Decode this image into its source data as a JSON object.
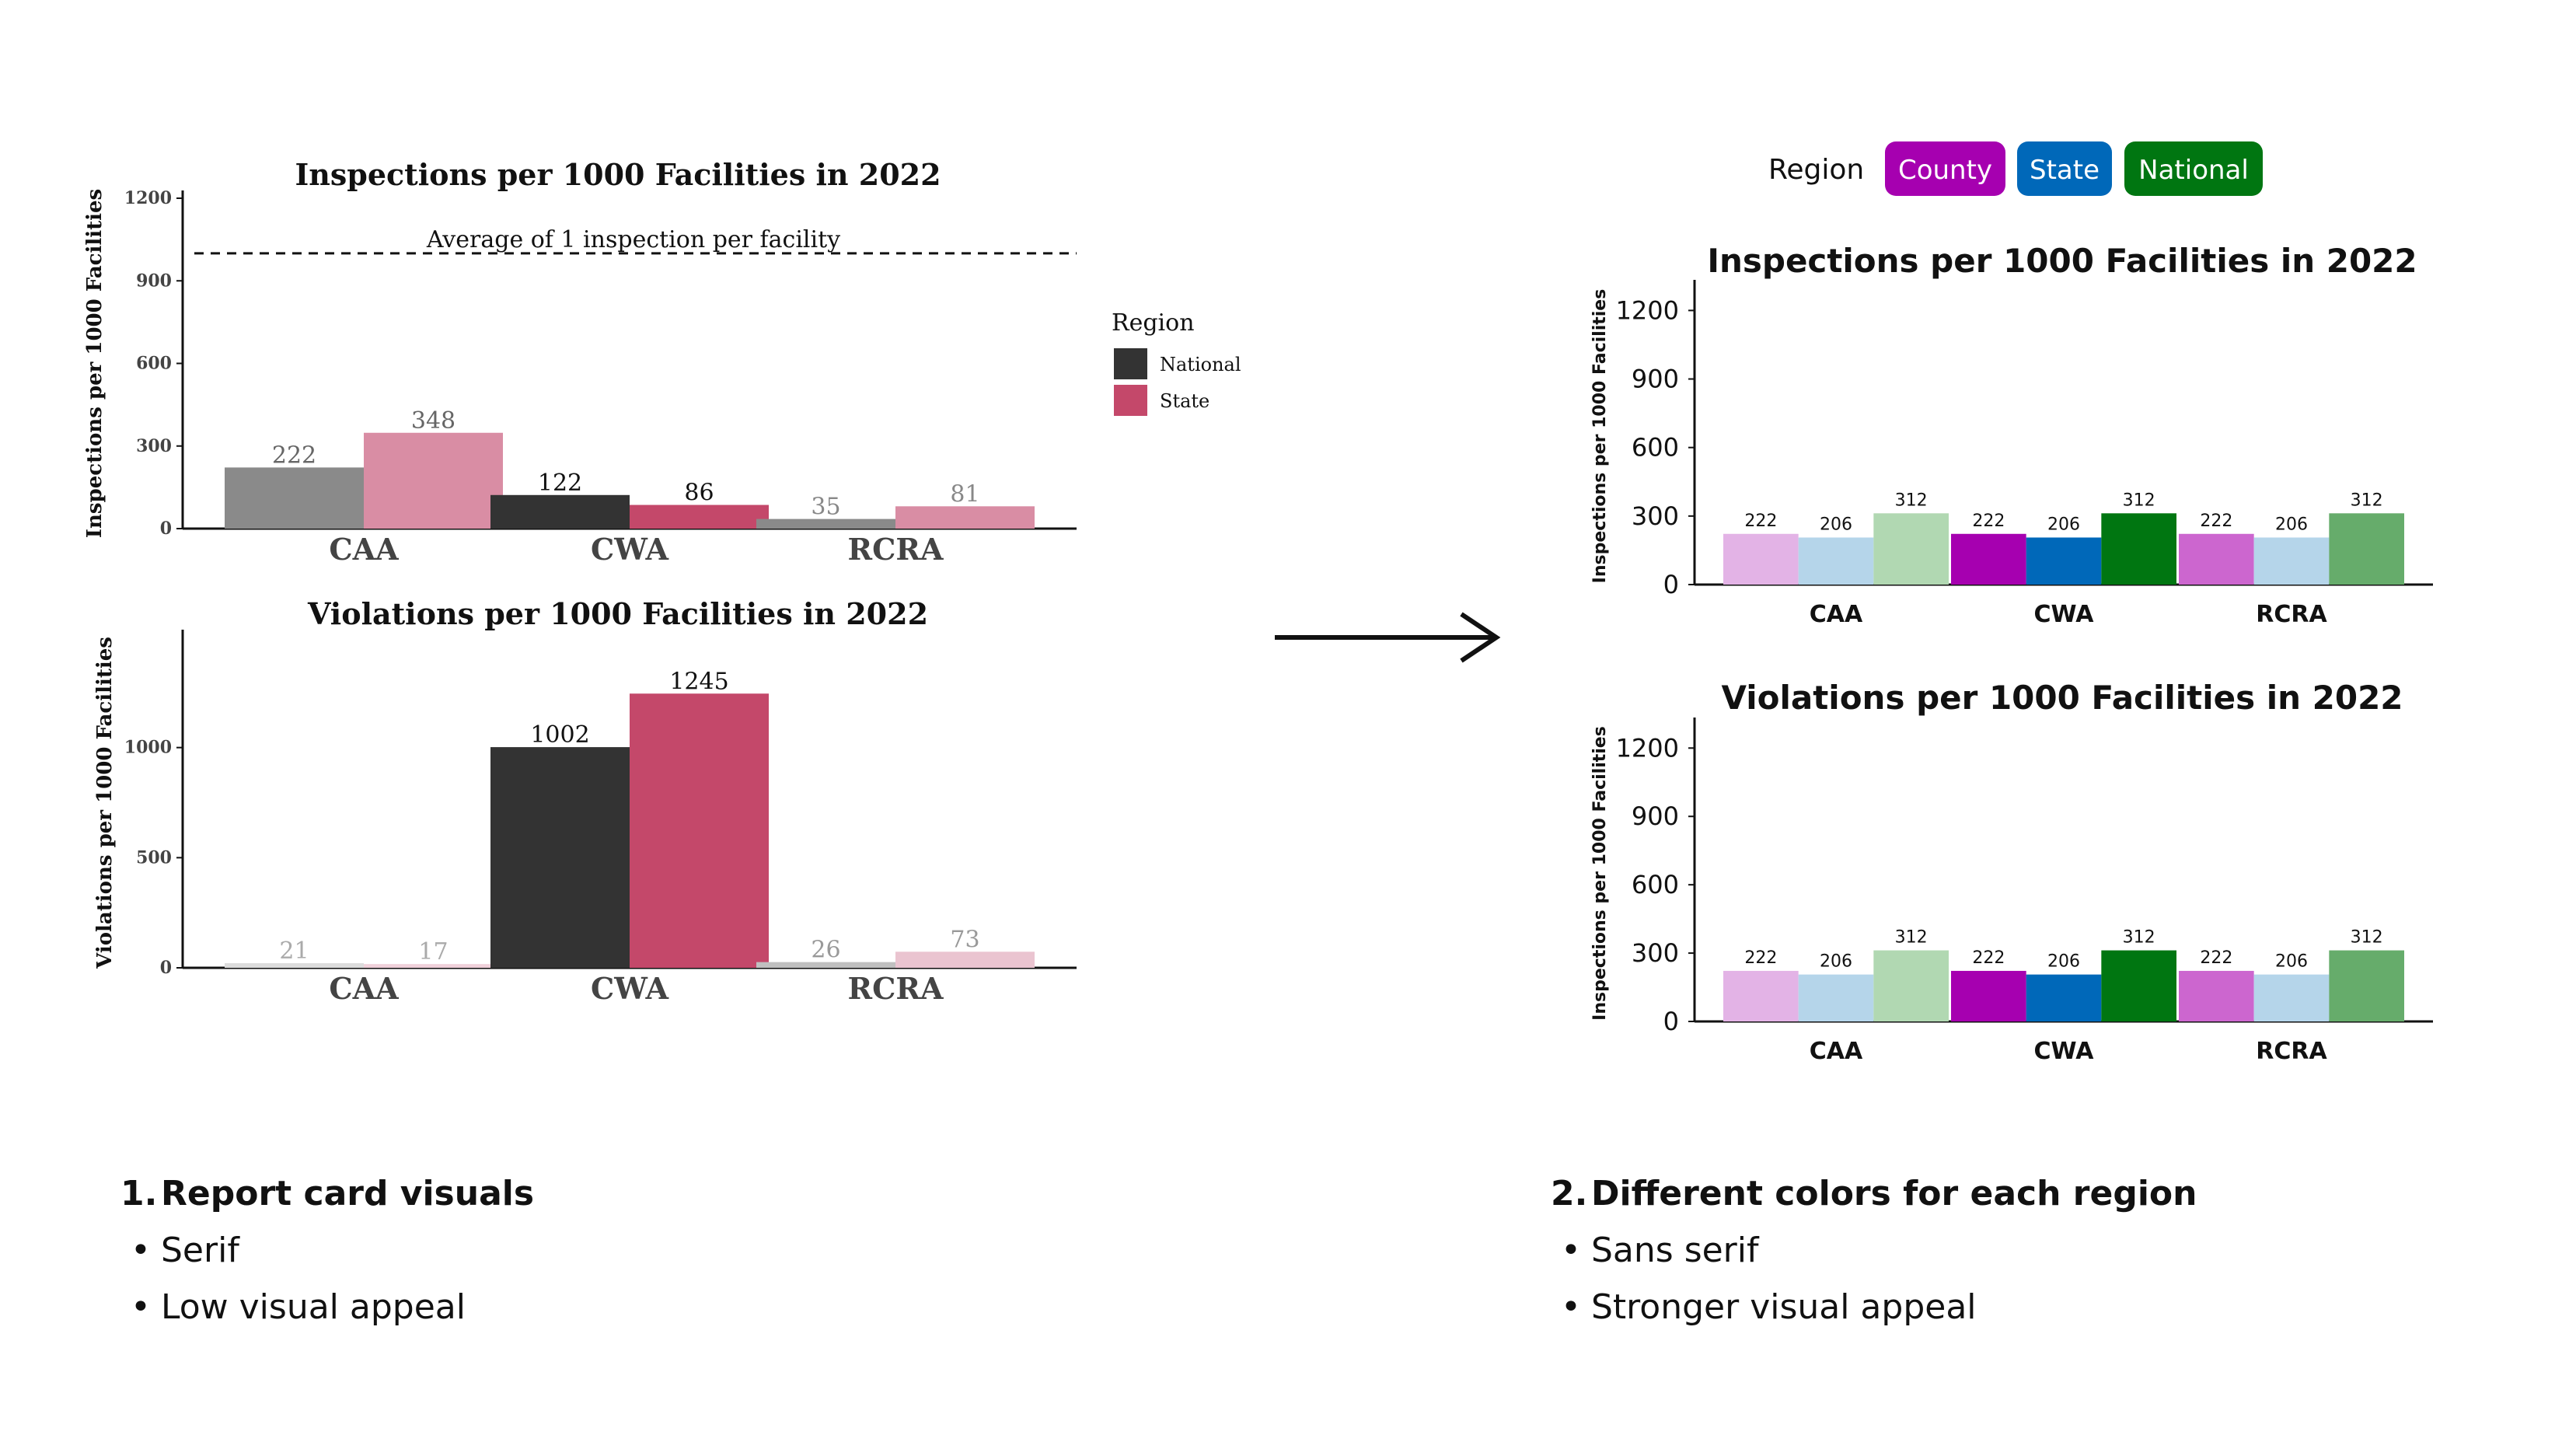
{
  "chart_data": [
    {
      "id": "left-inspections",
      "type": "bar",
      "style": "serif",
      "title": "Inspections per 1000 Facilities in 2022",
      "ylabel": "Inspections per 1000 Facilities",
      "xlabel": "",
      "categories": [
        "CAA",
        "CWA",
        "RCRA"
      ],
      "ylim": [
        0,
        1200
      ],
      "yticks": [
        0,
        300,
        600,
        900,
        1200
      ],
      "grid": false,
      "series": [
        {
          "name": "National",
          "values": [
            222,
            122,
            35
          ],
          "colors": [
            "#8a8a8a",
            "#333333",
            "#8a8a8a"
          ],
          "label_colors": [
            "#666666",
            "#111111",
            "#888888"
          ]
        },
        {
          "name": "State",
          "values": [
            348,
            86,
            81
          ],
          "colors": [
            "#d98da4",
            "#c4486a",
            "#d98da4"
          ],
          "label_colors": [
            "#666666",
            "#111111",
            "#888888"
          ]
        }
      ],
      "reference_line": {
        "value": 1000,
        "label": "Average of 1 inspection per facility"
      },
      "legend": {
        "title": "Region",
        "placement": "right",
        "items": [
          {
            "name": "National",
            "color": "#333333"
          },
          {
            "name": "State",
            "color": "#c4486a"
          }
        ]
      }
    },
    {
      "id": "left-violations",
      "type": "bar",
      "style": "serif",
      "title": "Violations per 1000 Facilities in 2022",
      "ylabel": "Violations per 1000 Facilities",
      "xlabel": "",
      "categories": [
        "CAA",
        "CWA",
        "RCRA"
      ],
      "ylim": [
        0,
        1500
      ],
      "yticks": [
        0,
        500,
        1000
      ],
      "grid": false,
      "series": [
        {
          "name": "National",
          "values": [
            21,
            1002,
            26
          ],
          "colors": [
            "#dcdcdc",
            "#333333",
            "#c0c0c0"
          ],
          "label_colors": [
            "#aaaaaa",
            "#111111",
            "#999999"
          ]
        },
        {
          "name": "State",
          "values": [
            17,
            1245,
            73
          ],
          "colors": [
            "#f0d0da",
            "#c4486a",
            "#eac4d0"
          ],
          "label_colors": [
            "#aaaaaa",
            "#111111",
            "#999999"
          ]
        }
      ]
    },
    {
      "id": "right-inspections",
      "type": "bar",
      "style": "sans",
      "title": "Inspections per 1000 Facilities in 2022",
      "ylabel": "Inspections per 1000 Facilities",
      "xlabel": "",
      "categories": [
        "CAA",
        "CWA",
        "RCRA"
      ],
      "ylim": [
        0,
        1300
      ],
      "yticks": [
        0,
        300,
        600,
        900,
        1200
      ],
      "grid": false,
      "series": [
        {
          "name": "County",
          "values": [
            222,
            222,
            222
          ],
          "colors": [
            "#e3b3e6",
            "#a600b0",
            "#cc66cf"
          ]
        },
        {
          "name": "State",
          "values": [
            206,
            206,
            206
          ],
          "colors": [
            "#b5d5ea",
            "#0068b9",
            "#b5d5ea"
          ]
        },
        {
          "name": "National",
          "values": [
            312,
            312,
            312
          ],
          "colors": [
            "#b1d8b2",
            "#007611",
            "#66ac6b"
          ]
        }
      ]
    },
    {
      "id": "right-violations",
      "type": "bar",
      "style": "sans",
      "title": "Violations per 1000 Facilities in 2022",
      "ylabel": "Inspections per 1000 Facilities",
      "xlabel": "",
      "categories": [
        "CAA",
        "CWA",
        "RCRA"
      ],
      "ylim": [
        0,
        1300
      ],
      "yticks": [
        0,
        300,
        600,
        900,
        1200
      ],
      "grid": false,
      "series": [
        {
          "name": "County",
          "values": [
            222,
            222,
            222
          ],
          "colors": [
            "#e3b3e6",
            "#a600b0",
            "#cc66cf"
          ]
        },
        {
          "name": "State",
          "values": [
            206,
            206,
            206
          ],
          "colors": [
            "#b5d5ea",
            "#0068b9",
            "#b5d5ea"
          ]
        },
        {
          "name": "National",
          "values": [
            312,
            312,
            312
          ],
          "colors": [
            "#b1d8b2",
            "#007611",
            "#66ac6b"
          ]
        }
      ]
    }
  ],
  "right_legend": {
    "title": "Region",
    "items": [
      {
        "label": "County",
        "color": "#a600b0"
      },
      {
        "label": "State",
        "color": "#0068b9"
      },
      {
        "label": "National",
        "color": "#007611"
      }
    ]
  },
  "notes": {
    "left": {
      "number": "1.",
      "heading": "Report card visuals",
      "bullets": [
        "Serif",
        "Low visual appeal"
      ]
    },
    "right": {
      "number": "2.",
      "heading": "Different colors for each region",
      "bullets": [
        "Sans serif",
        "Stronger visual appeal"
      ]
    }
  }
}
